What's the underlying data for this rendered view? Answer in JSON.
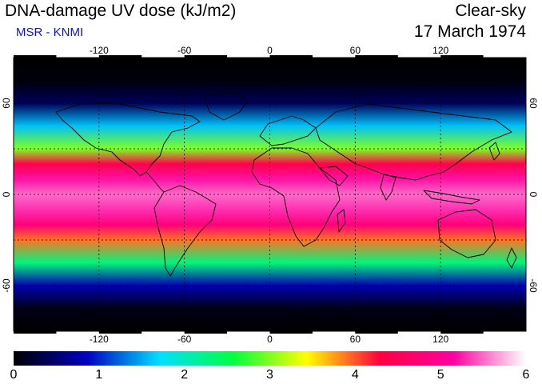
{
  "header": {
    "title": "DNA-damage UV dose (kJ/m2)",
    "subtitle": "MSR - KNMI",
    "sky_condition": "Clear-sky",
    "date": "17 March 1974"
  },
  "map": {
    "projection": "equirectangular",
    "lon_range": [
      -180,
      180
    ],
    "lat_range": [
      -90,
      90
    ],
    "grid": true,
    "grid_style": "dashed",
    "lon_tick_labels": [
      "-120",
      "-60",
      "0",
      "60",
      "120"
    ],
    "lat_tick_labels_left": [
      "60",
      "0",
      "-60"
    ],
    "lat_tick_labels_right": [
      "60",
      "0",
      "-60"
    ],
    "lon_ticks": [
      -120,
      -60,
      0,
      60,
      120
    ],
    "lat_ticks": [
      60,
      0,
      -60
    ]
  },
  "colorbar": {
    "min": 0,
    "max": 6,
    "labels": [
      "0",
      "1",
      "2",
      "3",
      "4",
      "5",
      "6"
    ],
    "colors": [
      "#000000",
      "#0000c0",
      "#00e0ff",
      "#00ff40",
      "#ffff00",
      "#ff0040",
      "#ff00a0",
      "#ffffff"
    ]
  },
  "chart_data": {
    "type": "heatmap",
    "title": "DNA-damage UV dose (kJ/m2)",
    "variable_unit": "kJ/m2",
    "zonal_profile": {
      "lat": [
        -90,
        -75,
        -60,
        -45,
        -30,
        -20,
        -10,
        0,
        10,
        20,
        30,
        45,
        60,
        75,
        90
      ],
      "dose": [
        0.0,
        0.1,
        0.8,
        2.3,
        3.9,
        4.8,
        5.3,
        5.5,
        5.2,
        4.4,
        3.0,
        1.6,
        0.4,
        0.05,
        0.0
      ]
    }
  }
}
